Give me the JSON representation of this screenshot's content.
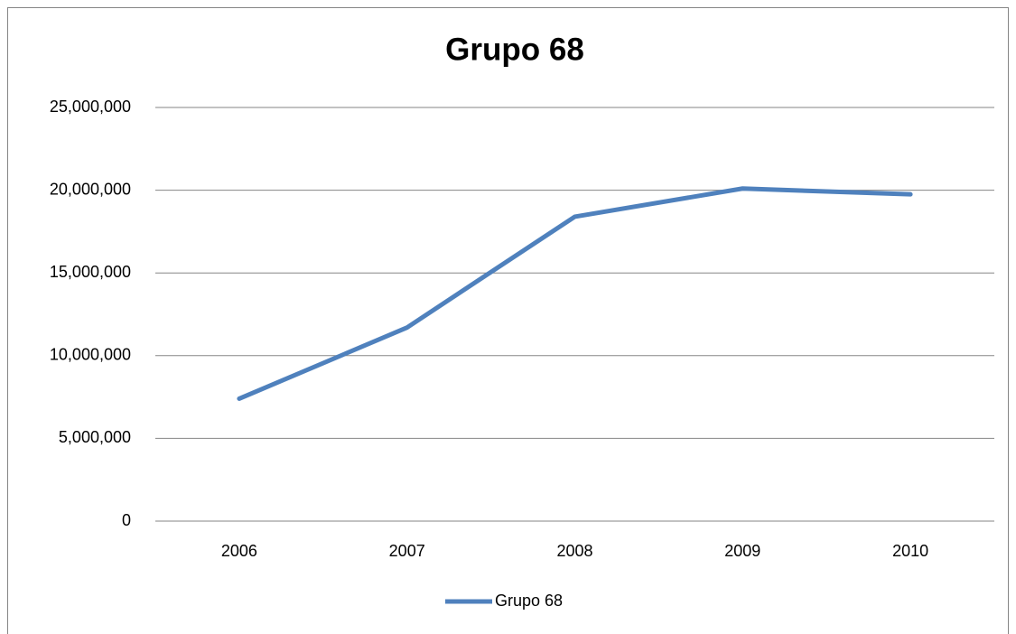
{
  "chart_data": {
    "type": "line",
    "title": "Grupo 68",
    "categories": [
      "2006",
      "2007",
      "2008",
      "2009",
      "2010"
    ],
    "series": [
      {
        "name": "Grupo 68",
        "color": "#4f81bd",
        "values": [
          7400000,
          11700000,
          18400000,
          20100000,
          19750000
        ]
      }
    ],
    "ylim": [
      0,
      25000000
    ],
    "yticks": [
      0,
      {
        "value": 5000000,
        "label": "5,000,000"
      },
      {
        "value": 10000000,
        "label": "10,000,000"
      },
      {
        "value": 15000000,
        "label": "15,000,000"
      },
      {
        "value": 20000000,
        "label": "20,000,000"
      },
      {
        "value": 25000000,
        "label": "25,000,000"
      }
    ],
    "grid": true,
    "legend": "bottom"
  }
}
